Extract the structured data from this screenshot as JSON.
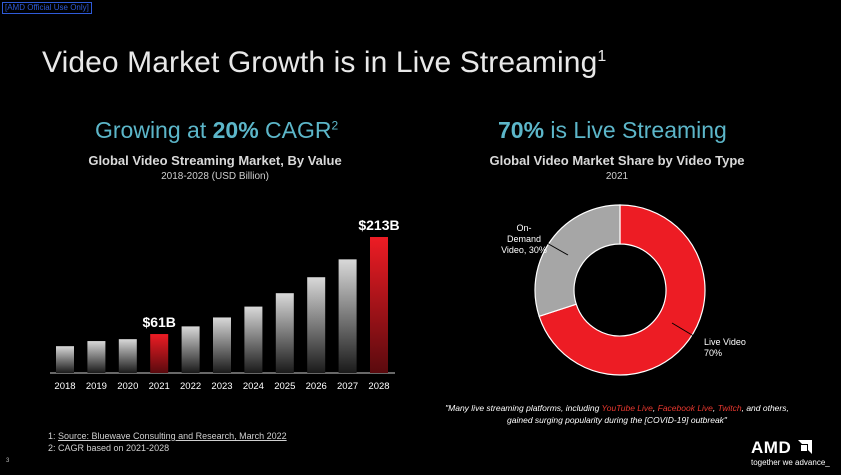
{
  "classification": "[AMD Official Use Only]",
  "title": {
    "text": "Video Market Growth is in Live Streaming",
    "sup": "1"
  },
  "left": {
    "headline_pre": "Growing at ",
    "headline_bold": "20%",
    "headline_post": " CAGR",
    "headline_sup": "2",
    "subtitle": "Global Video Streaming Market, By Value",
    "subsubtitle": "2018-2028 (USD Billion)"
  },
  "right": {
    "headline_bold": "70%",
    "headline_post": " is Live Streaming",
    "subtitle": "Global Video Market Share by Video Type",
    "subsubtitle": "2021"
  },
  "quote": {
    "pre": "\"Many live streaming platforms, including ",
    "p1": "YouTube Live",
    "sep1": ", ",
    "p2": "Facebook Live",
    "sep2": ", ",
    "p3": "Twitch",
    "post": ", and others, gained surging popularity during the [COVID-19] outbreak\""
  },
  "footnotes": {
    "f1_prefix": "1: ",
    "f1_link": "Source: Bluewave Consulting and Research, March 2022",
    "f2": "2: CAGR based on 2021-2028"
  },
  "page_number": "3",
  "logo": {
    "brand": "AMD",
    "tagline": "together we advance_"
  },
  "colors": {
    "accent_red": "#ed1c24",
    "headline_teal": "#5cb6c9",
    "gray_slice": "#a6a6a6"
  },
  "chart_data": [
    {
      "type": "bar",
      "title": "Global Video Streaming Market, By Value",
      "subtitle": "2018-2028 (USD Billion)",
      "categories": [
        "2018",
        "2019",
        "2020",
        "2021",
        "2022",
        "2023",
        "2024",
        "2025",
        "2026",
        "2027",
        "2028"
      ],
      "values": [
        42,
        50,
        53,
        61,
        73,
        87,
        104,
        125,
        150,
        178,
        213
      ],
      "highlighted": [
        "2021",
        "2028"
      ],
      "data_labels": {
        "2021": "$61B",
        "2028": "$213B"
      },
      "ylim": [
        0,
        213
      ]
    },
    {
      "type": "pie",
      "donut": true,
      "title": "Global Video Market Share by Video Type",
      "subtitle": "2021",
      "slices": [
        {
          "label_lines": [
            "Live Video",
            "70%"
          ],
          "value": 70,
          "color": "#ed1c24"
        },
        {
          "label_lines": [
            "On-",
            "Demand",
            "Video, 30%"
          ],
          "value": 30,
          "color": "#a6a6a6"
        }
      ]
    }
  ]
}
